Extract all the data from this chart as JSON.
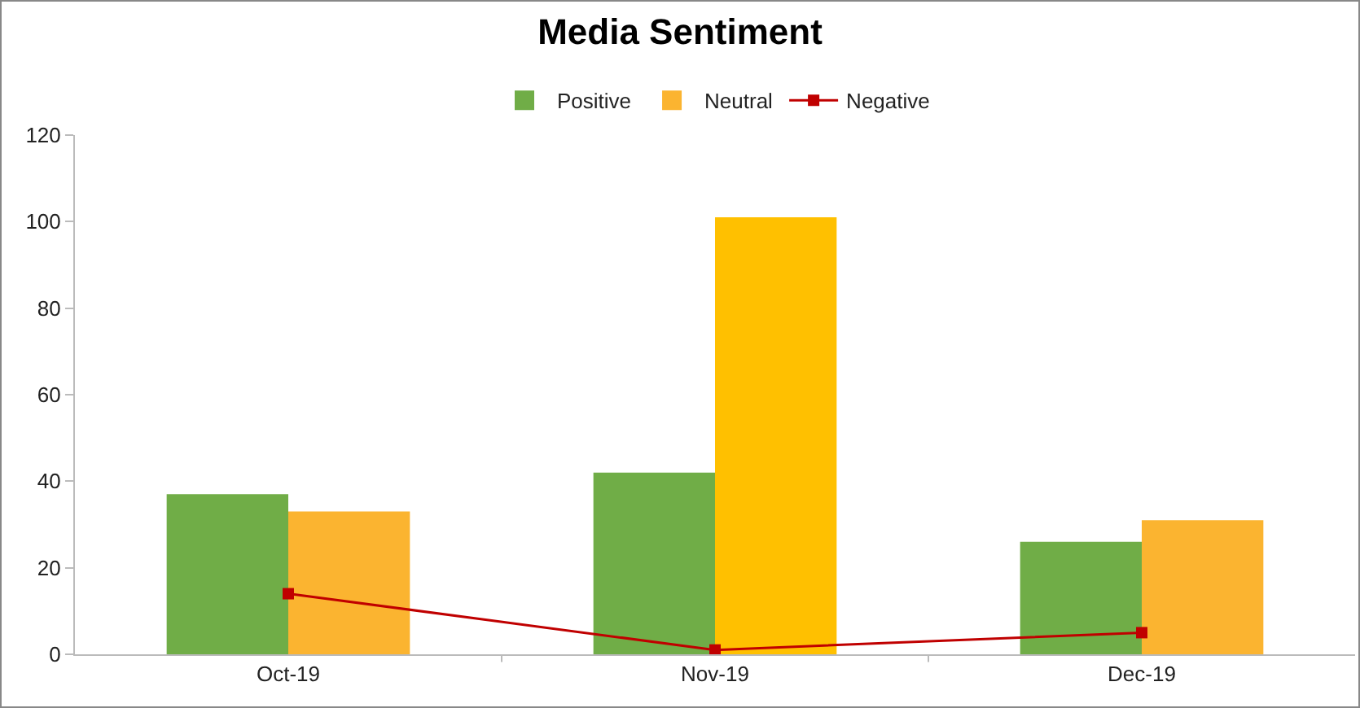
{
  "chart_data": {
    "type": "bar",
    "title": "Media Sentiment",
    "categories": [
      "Oct-19",
      "Nov-19",
      "Dec-19"
    ],
    "series": [
      {
        "name": "Positive",
        "color": "#70ad47",
        "values": [
          37,
          42,
          26
        ]
      },
      {
        "name": "Neutral",
        "colors": [
          "#fbb430",
          "#ffc000",
          "#fbb430"
        ],
        "values": [
          33,
          101,
          31
        ]
      },
      {
        "name": "Negative",
        "type": "line",
        "color": "#c00000",
        "marker": "square",
        "values": [
          14,
          1,
          5
        ]
      }
    ],
    "ylim": [
      0,
      120
    ],
    "yticks": [
      0,
      20,
      40,
      60,
      80,
      100,
      120
    ],
    "grid": false,
    "legend": "top"
  }
}
